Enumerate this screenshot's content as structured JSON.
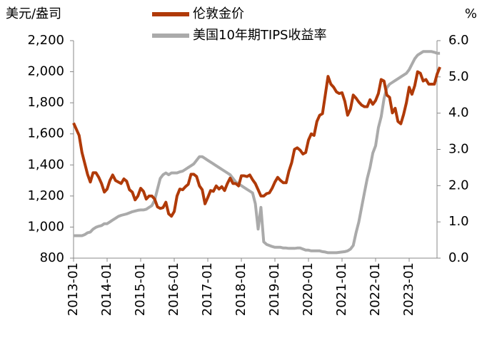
{
  "chart_data": {
    "type": "line",
    "y_label": "美元/盎司",
    "y2_label": "%",
    "x": [
      "2013-01",
      "2013-02",
      "2013-03",
      "2013-04",
      "2013-05",
      "2013-06",
      "2013-07",
      "2013-08",
      "2013-09",
      "2013-10",
      "2013-11",
      "2013-12",
      "2014-01",
      "2014-02",
      "2014-03",
      "2014-04",
      "2014-05",
      "2014-06",
      "2014-07",
      "2014-08",
      "2014-09",
      "2014-10",
      "2014-11",
      "2014-12",
      "2015-01",
      "2015-02",
      "2015-03",
      "2015-04",
      "2015-05",
      "2015-06",
      "2015-07",
      "2015-08",
      "2015-09",
      "2015-10",
      "2015-11",
      "2015-12",
      "2016-01",
      "2016-02",
      "2016-03",
      "2016-04",
      "2016-05",
      "2016-06",
      "2016-07",
      "2016-08",
      "2016-09",
      "2016-10",
      "2016-11",
      "2016-12",
      "2017-01",
      "2017-02",
      "2017-03",
      "2017-04",
      "2017-05",
      "2017-06",
      "2017-07",
      "2017-08",
      "2017-09",
      "2017-10",
      "2017-11",
      "2017-12",
      "2018-01",
      "2018-02",
      "2018-03",
      "2018-04",
      "2018-05",
      "2018-06",
      "2018-07",
      "2018-08",
      "2018-09",
      "2018-10",
      "2018-11",
      "2018-12",
      "2019-01",
      "2019-02",
      "2019-03",
      "2019-04",
      "2019-05",
      "2019-06",
      "2019-07",
      "2019-08",
      "2019-09",
      "2019-10",
      "2019-11",
      "2019-12",
      "2020-01",
      "2020-02",
      "2020-03",
      "2020-04",
      "2020-05",
      "2020-06",
      "2020-07",
      "2020-08",
      "2020-09",
      "2020-10",
      "2020-11",
      "2020-12",
      "2021-01",
      "2021-02",
      "2021-03",
      "2021-04",
      "2021-05",
      "2021-06",
      "2021-07",
      "2021-08",
      "2021-09",
      "2021-10",
      "2021-11",
      "2021-12",
      "2022-01",
      "2022-02",
      "2022-03",
      "2022-04",
      "2022-05",
      "2022-06",
      "2022-07",
      "2022-08",
      "2022-09",
      "2022-10",
      "2022-11",
      "2022-12",
      "2023-01",
      "2023-02",
      "2023-03",
      "2023-04",
      "2023-05",
      "2023-06",
      "2023-07",
      "2023-08",
      "2023-09",
      "2023-10",
      "2023-11",
      "2023-12"
    ],
    "series": [
      {
        "name": "伦敦金价",
        "color": "#b03a08",
        "values": [
          1670,
          1630,
          1590,
          1480,
          1410,
          1340,
          1290,
          1350,
          1350,
          1320,
          1280,
          1225,
          1245,
          1300,
          1335,
          1300,
          1290,
          1280,
          1310,
          1295,
          1240,
          1225,
          1175,
          1200,
          1250,
          1230,
          1180,
          1200,
          1200,
          1180,
          1130,
          1120,
          1125,
          1160,
          1085,
          1070,
          1100,
          1200,
          1245,
          1240,
          1260,
          1275,
          1340,
          1340,
          1325,
          1265,
          1240,
          1150,
          1190,
          1235,
          1230,
          1265,
          1245,
          1260,
          1235,
          1280,
          1315,
          1280,
          1280,
          1265,
          1330,
          1330,
          1325,
          1335,
          1305,
          1280,
          1240,
          1200,
          1200,
          1215,
          1220,
          1250,
          1290,
          1320,
          1300,
          1285,
          1285,
          1360,
          1415,
          1500,
          1510,
          1495,
          1470,
          1480,
          1560,
          1600,
          1590,
          1680,
          1720,
          1730,
          1850,
          1970,
          1920,
          1900,
          1870,
          1860,
          1865,
          1810,
          1720,
          1760,
          1850,
          1830,
          1805,
          1785,
          1775,
          1775,
          1820,
          1790,
          1815,
          1860,
          1950,
          1940,
          1850,
          1835,
          1735,
          1765,
          1680,
          1665,
          1725,
          1800,
          1900,
          1855,
          1910,
          2000,
          1990,
          1940,
          1950,
          1920,
          1920,
          1920,
          1985,
          2030
        ]
      },
      {
        "name": "美国10年期TIPS收益率",
        "color": "#aaaaaa",
        "axis": "y2",
        "values": [
          0.62,
          0.62,
          0.62,
          0.62,
          0.65,
          0.7,
          0.72,
          0.8,
          0.85,
          0.88,
          0.9,
          0.95,
          0.95,
          1.0,
          1.05,
          1.1,
          1.15,
          1.18,
          1.2,
          1.22,
          1.25,
          1.28,
          1.3,
          1.32,
          1.33,
          1.33,
          1.35,
          1.4,
          1.45,
          1.6,
          1.9,
          2.2,
          2.3,
          2.35,
          2.3,
          2.35,
          2.35,
          2.35,
          2.38,
          2.4,
          2.45,
          2.5,
          2.55,
          2.6,
          2.7,
          2.8,
          2.8,
          2.75,
          2.7,
          2.65,
          2.6,
          2.55,
          2.5,
          2.45,
          2.4,
          2.35,
          2.3,
          2.2,
          2.1,
          2.05,
          2.0,
          1.95,
          1.9,
          1.85,
          1.8,
          1.5,
          0.8,
          1.4,
          0.45,
          0.38,
          0.35,
          0.32,
          0.3,
          0.3,
          0.3,
          0.28,
          0.28,
          0.27,
          0.27,
          0.27,
          0.28,
          0.28,
          0.25,
          0.22,
          0.22,
          0.2,
          0.2,
          0.2,
          0.2,
          0.18,
          0.17,
          0.15,
          0.15,
          0.15,
          0.15,
          0.16,
          0.17,
          0.18,
          0.2,
          0.25,
          0.35,
          0.7,
          1.0,
          1.4,
          1.8,
          2.2,
          2.5,
          2.9,
          3.1,
          3.6,
          3.9,
          4.4,
          4.7,
          4.8,
          4.85,
          4.9,
          4.95,
          5.0,
          5.05,
          5.1,
          5.2,
          5.35,
          5.5,
          5.6,
          5.65,
          5.7,
          5.7,
          5.7,
          5.7,
          5.68,
          5.65,
          5.65
        ]
      }
    ],
    "xticks": [
      "2013-01",
      "2014-01",
      "2015-01",
      "2016-01",
      "2017-01",
      "2018-01",
      "2019-01",
      "2020-01",
      "2021-01",
      "2022-01",
      "2023-01"
    ],
    "ylim": [
      800,
      2200
    ],
    "yticks": [
      800,
      {
        "value": 1000,
        "label": "1,000"
      },
      {
        "value": 1200,
        "label": "1,200"
      },
      {
        "value": 1400,
        "label": "1,400"
      },
      {
        "value": 1600,
        "label": "1,600"
      },
      {
        "value": 1800,
        "label": "1,800"
      },
      {
        "value": 2000,
        "label": "2,000"
      },
      {
        "value": 2200,
        "label": "2,200"
      }
    ],
    "y2lim": [
      0,
      6
    ],
    "y2ticks": [
      {
        "value": 0,
        "label": "0.0"
      },
      {
        "value": 1,
        "label": "1.0"
      },
      {
        "value": 2,
        "label": "2.0"
      },
      {
        "value": 3,
        "label": "3.0"
      },
      {
        "value": 4,
        "label": "4.0"
      },
      {
        "value": 5,
        "label": "5.0"
      },
      {
        "value": 6,
        "label": "6.0"
      }
    ],
    "legend": "top"
  }
}
